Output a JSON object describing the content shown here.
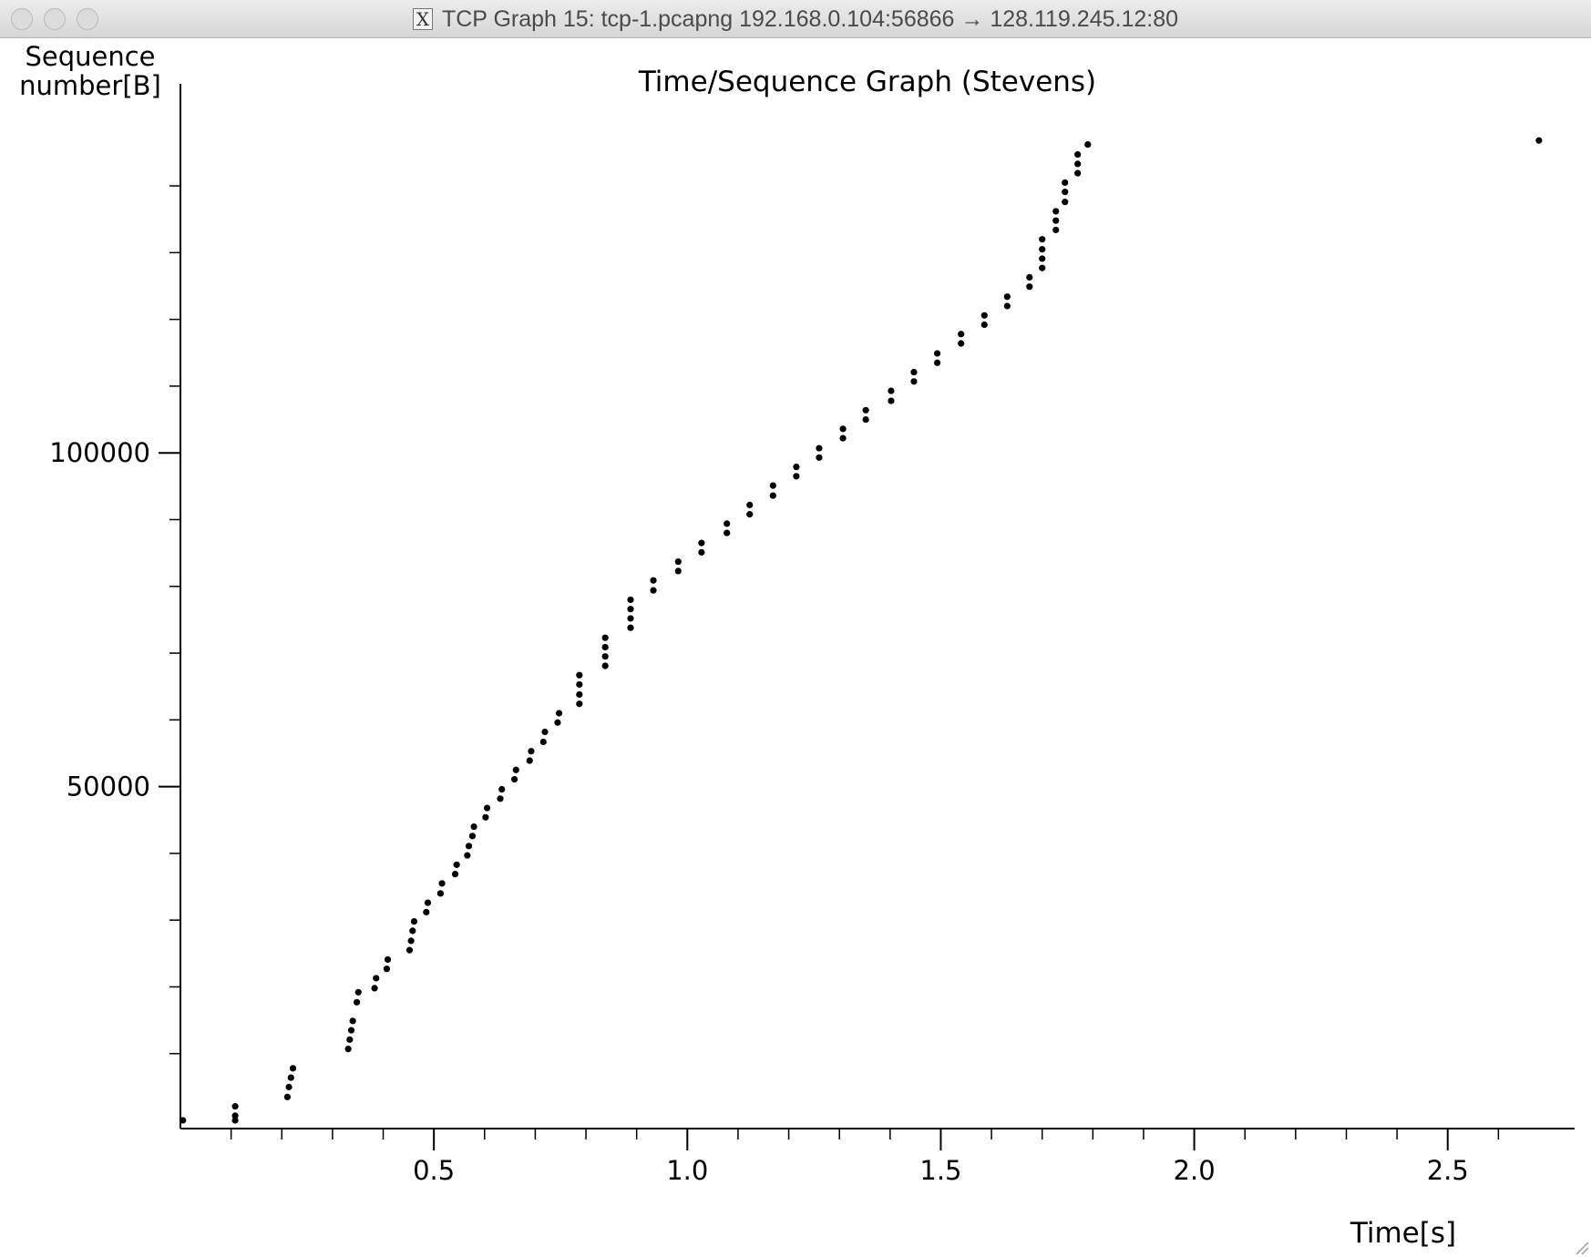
{
  "window": {
    "title": "TCP Graph 15: tcp-1.pcapng 192.168.0.104:56866 → 128.119.245.12:80",
    "app_icon": "x11-icon",
    "controls": [
      "close",
      "minimize",
      "zoom"
    ]
  },
  "chart_data": {
    "type": "scatter",
    "title": "Time/Sequence Graph (Stevens)",
    "ylabel_lines": [
      "Sequence",
      "number[B]"
    ],
    "xlabel": "Time[s]",
    "xlim": [
      0.0,
      2.75
    ],
    "ylim": [
      -2500,
      153000
    ],
    "x_major_ticks": [
      0.5,
      1.0,
      1.5,
      2.0,
      2.5
    ],
    "x_tick_labels": [
      "0.5",
      "1.0",
      "1.5",
      "2.0",
      "2.5"
    ],
    "x_minor_ticks": [
      0.1,
      0.2,
      0.3,
      0.4,
      0.6,
      0.7,
      0.8,
      0.9,
      1.1,
      1.2,
      1.3,
      1.4,
      1.6,
      1.7,
      1.8,
      1.9,
      2.1,
      2.2,
      2.3,
      2.4,
      2.6
    ],
    "y_major_ticks": [
      50000,
      100000
    ],
    "y_tick_labels": [
      "50000",
      "100000"
    ],
    "y_minor_ticks": [
      10000,
      20000,
      30000,
      40000,
      60000,
      70000,
      80000,
      90000,
      110000,
      120000,
      130000,
      140000
    ],
    "grid": false,
    "marker_color": "#000000",
    "series": [
      {
        "points": [
          [
            0.005,
            0
          ],
          [
            0.108,
            0
          ],
          [
            0.108,
            700
          ],
          [
            0.108,
            2100
          ],
          [
            0.211,
            3500
          ],
          [
            0.214,
            5000
          ],
          [
            0.218,
            6400
          ],
          [
            0.222,
            7800
          ],
          [
            0.331,
            10700
          ],
          [
            0.334,
            12100
          ],
          [
            0.337,
            13500
          ],
          [
            0.34,
            14900
          ],
          [
            0.348,
            17700
          ],
          [
            0.351,
            19200
          ],
          [
            0.383,
            19800
          ],
          [
            0.386,
            21300
          ],
          [
            0.407,
            22700
          ],
          [
            0.409,
            24100
          ],
          [
            0.452,
            25500
          ],
          [
            0.455,
            26900
          ],
          [
            0.458,
            28400
          ],
          [
            0.461,
            29800
          ],
          [
            0.485,
            31200
          ],
          [
            0.488,
            32600
          ],
          [
            0.513,
            34000
          ],
          [
            0.516,
            35500
          ],
          [
            0.542,
            36900
          ],
          [
            0.545,
            38300
          ],
          [
            0.566,
            39700
          ],
          [
            0.569,
            41100
          ],
          [
            0.576,
            42600
          ],
          [
            0.579,
            44000
          ],
          [
            0.602,
            45400
          ],
          [
            0.605,
            46800
          ],
          [
            0.631,
            48200
          ],
          [
            0.634,
            49600
          ],
          [
            0.659,
            51100
          ],
          [
            0.662,
            52500
          ],
          [
            0.689,
            53900
          ],
          [
            0.692,
            55300
          ],
          [
            0.716,
            56700
          ],
          [
            0.719,
            58200
          ],
          [
            0.744,
            59600
          ],
          [
            0.747,
            61000
          ],
          [
            0.787,
            62400
          ],
          [
            0.787,
            63800
          ],
          [
            0.787,
            65300
          ],
          [
            0.787,
            66700
          ],
          [
            0.838,
            68100
          ],
          [
            0.838,
            69500
          ],
          [
            0.838,
            70900
          ],
          [
            0.838,
            72300
          ],
          [
            0.888,
            73800
          ],
          [
            0.888,
            75200
          ],
          [
            0.888,
            76600
          ],
          [
            0.888,
            78000
          ],
          [
            0.933,
            79400
          ],
          [
            0.933,
            80900
          ],
          [
            0.982,
            82300
          ],
          [
            0.982,
            83700
          ],
          [
            1.028,
            85100
          ],
          [
            1.028,
            86500
          ],
          [
            1.078,
            88000
          ],
          [
            1.078,
            89400
          ],
          [
            1.123,
            90800
          ],
          [
            1.123,
            92200
          ],
          [
            1.169,
            93600
          ],
          [
            1.169,
            95100
          ],
          [
            1.215,
            96500
          ],
          [
            1.215,
            97900
          ],
          [
            1.26,
            99300
          ],
          [
            1.26,
            100700
          ],
          [
            1.307,
            102200
          ],
          [
            1.307,
            103600
          ],
          [
            1.352,
            105000
          ],
          [
            1.352,
            106400
          ],
          [
            1.402,
            107800
          ],
          [
            1.402,
            109300
          ],
          [
            1.447,
            110700
          ],
          [
            1.447,
            112100
          ],
          [
            1.493,
            113500
          ],
          [
            1.493,
            114900
          ],
          [
            1.54,
            116400
          ],
          [
            1.54,
            117800
          ],
          [
            1.586,
            119200
          ],
          [
            1.586,
            120600
          ],
          [
            1.631,
            122000
          ],
          [
            1.631,
            123400
          ],
          [
            1.675,
            124900
          ],
          [
            1.675,
            126300
          ],
          [
            1.7,
            127700
          ],
          [
            1.7,
            129100
          ],
          [
            1.7,
            130500
          ],
          [
            1.7,
            132000
          ],
          [
            1.727,
            133400
          ],
          [
            1.727,
            134800
          ],
          [
            1.727,
            136200
          ],
          [
            1.745,
            137600
          ],
          [
            1.745,
            139100
          ],
          [
            1.745,
            140500
          ],
          [
            1.77,
            141900
          ],
          [
            1.77,
            143300
          ],
          [
            1.77,
            144700
          ],
          [
            1.79,
            146200
          ],
          [
            2.68,
            146800
          ]
        ]
      }
    ]
  }
}
